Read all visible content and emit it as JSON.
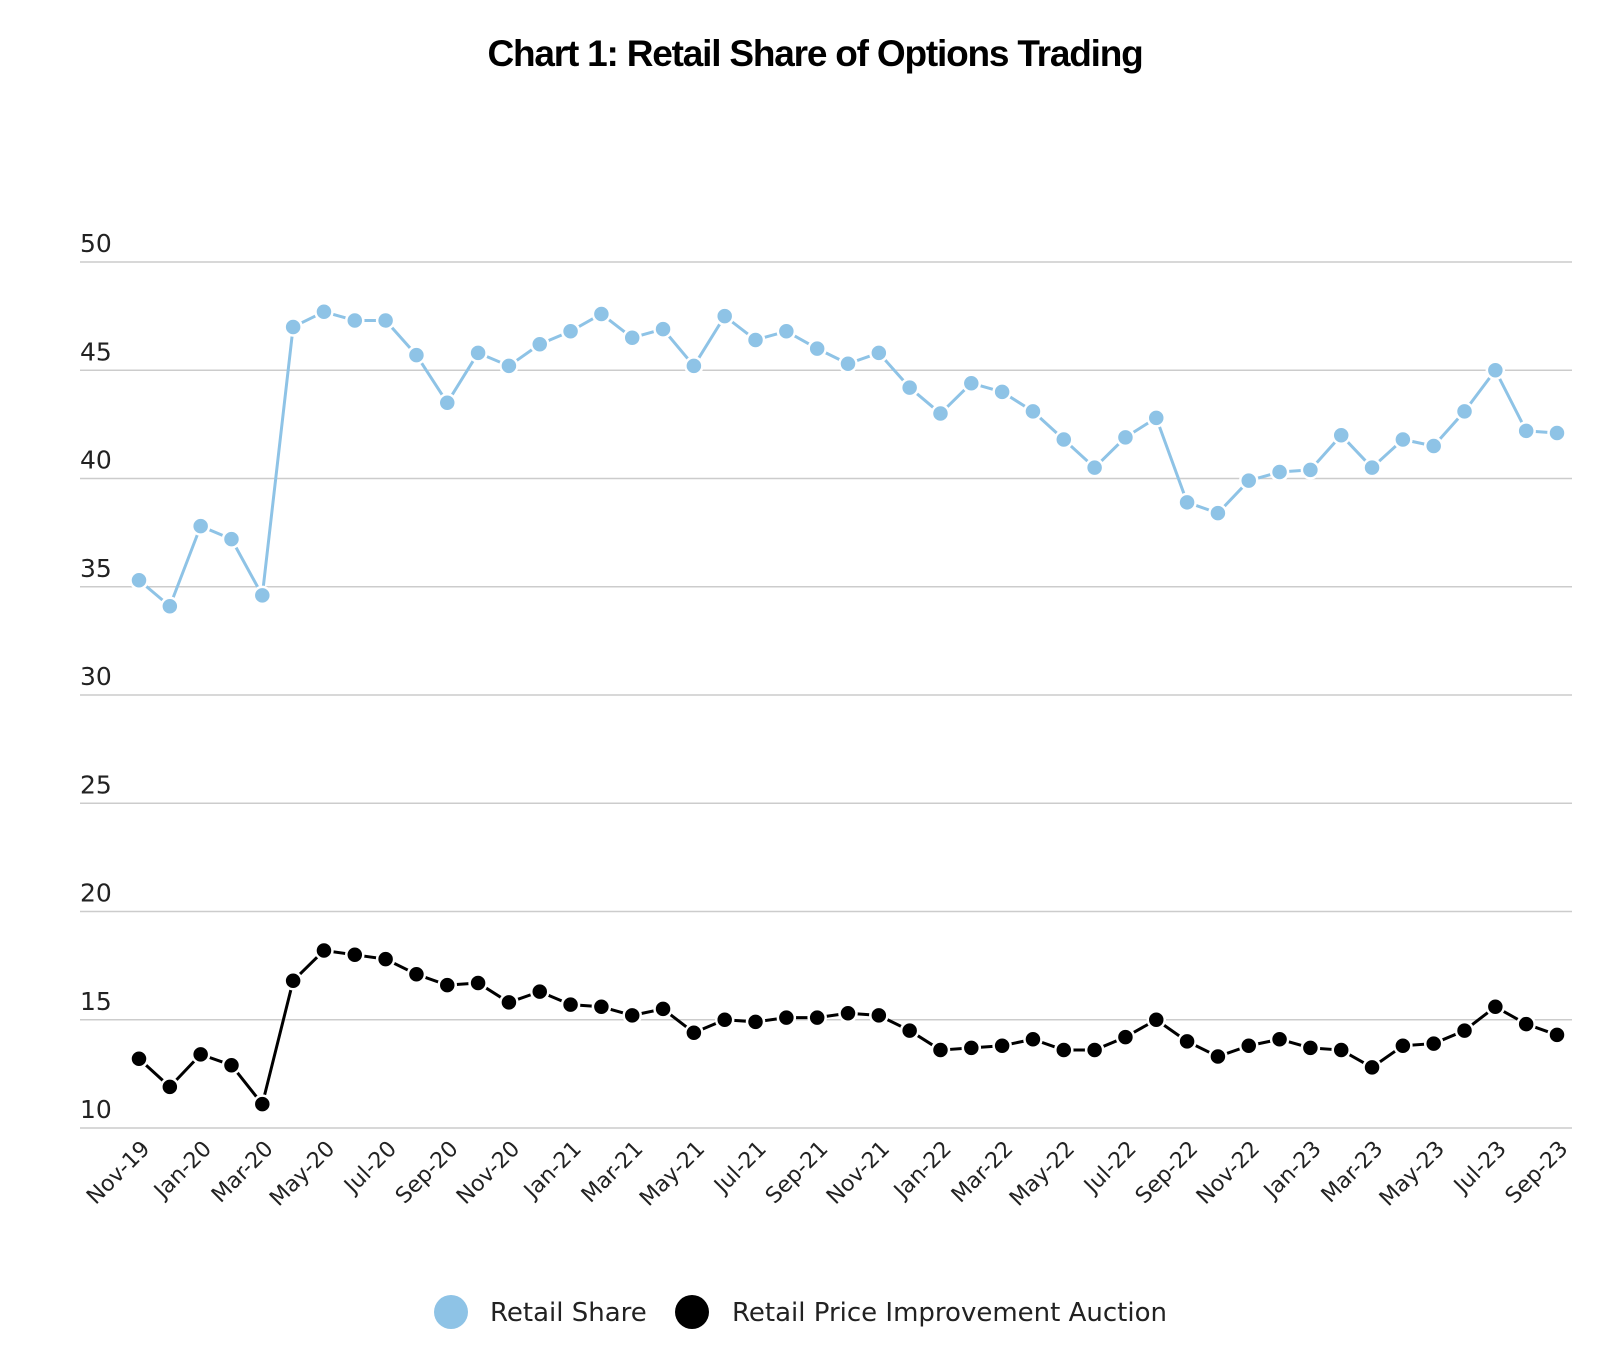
{
  "chart_data": {
    "type": "line",
    "title": "Chart 1: Retail Share of Options Trading",
    "xlabel": "",
    "ylabel": "",
    "ylim": [
      10,
      50
    ],
    "yticks": [
      "10",
      "15",
      "20",
      "25",
      "30",
      "35",
      "40",
      "45",
      "50"
    ],
    "grid": true,
    "legend_position": "bottom",
    "x": [
      "Nov-19",
      "Dec-19",
      "Jan-20",
      "Feb-20",
      "Mar-20",
      "Apr-20",
      "May-20",
      "Jun-20",
      "Jul-20",
      "Aug-20",
      "Sep-20",
      "Oct-20",
      "Nov-20",
      "Dec-20",
      "Jan-21",
      "Feb-21",
      "Mar-21",
      "Apr-21",
      "May-21",
      "Jun-21",
      "Jul-21",
      "Aug-21",
      "Sep-21",
      "Oct-21",
      "Nov-21",
      "Dec-21",
      "Jan-22",
      "Feb-22",
      "Mar-22",
      "Apr-22",
      "May-22",
      "Jun-22",
      "Jul-22",
      "Aug-22",
      "Sep-22",
      "Oct-22",
      "Nov-22",
      "Dec-22",
      "Jan-23",
      "Feb-23",
      "Mar-23",
      "Apr-23",
      "May-23",
      "Jun-23",
      "Jul-23",
      "Aug-23",
      "Sep-23"
    ],
    "xtick_labels": [
      "Nov-19",
      "Jan-20",
      "Mar-20",
      "May-20",
      "Jul-20",
      "Sep-20",
      "Nov-20",
      "Jan-21",
      "Mar-21",
      "May-21",
      "Jul-21",
      "Sep-21",
      "Nov-21",
      "Jan-22",
      "Mar-22",
      "May-22",
      "Jul-22",
      "Sep-22",
      "Nov-22",
      "Jan-23",
      "Mar-23",
      "May-23",
      "Jul-23",
      "Sep-23"
    ],
    "series": [
      {
        "name": "Retail Share",
        "color": "#8ec3e6",
        "values": [
          35.3,
          34.1,
          37.8,
          37.2,
          34.6,
          47.0,
          47.7,
          47.3,
          47.3,
          45.7,
          43.5,
          45.8,
          45.2,
          46.2,
          46.8,
          47.6,
          46.5,
          46.9,
          45.2,
          47.5,
          46.4,
          46.8,
          46.0,
          45.3,
          45.8,
          44.2,
          43.0,
          44.4,
          44.0,
          43.1,
          41.8,
          40.5,
          41.9,
          42.8,
          38.9,
          38.4,
          39.9,
          40.3,
          40.4,
          42.0,
          40.5,
          41.8,
          41.5,
          43.1,
          45.0,
          42.2,
          42.1
        ]
      },
      {
        "name": "Retail Price Improvement Auction",
        "color": "#000000",
        "values": [
          13.2,
          11.9,
          13.4,
          12.9,
          11.1,
          16.8,
          18.2,
          18.0,
          17.8,
          17.1,
          16.6,
          16.7,
          15.8,
          16.3,
          15.7,
          15.6,
          15.2,
          15.5,
          14.4,
          15.0,
          14.9,
          15.1,
          15.1,
          15.3,
          15.2,
          14.5,
          13.6,
          13.7,
          13.8,
          14.1,
          13.6,
          13.6,
          14.2,
          15.0,
          14.0,
          13.3,
          13.8,
          14.1,
          13.7,
          13.6,
          12.8,
          13.8,
          13.9,
          14.5,
          15.6,
          14.8,
          14.3
        ]
      }
    ]
  }
}
